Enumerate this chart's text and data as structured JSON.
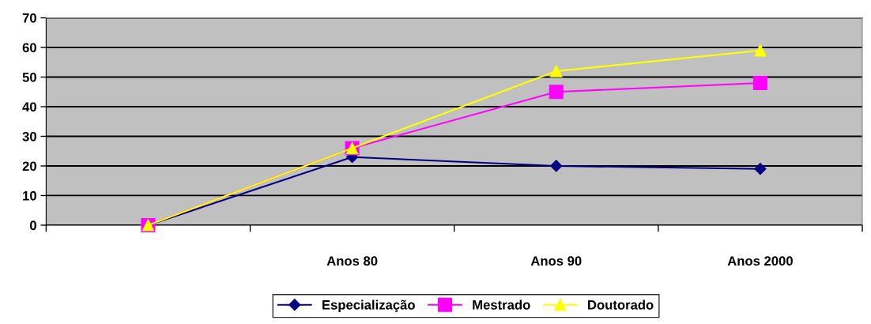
{
  "chart_data": {
    "type": "line",
    "categories": [
      null,
      "Anos 80",
      "Anos 90",
      "Anos 2000"
    ],
    "series": [
      {
        "name": "Especialização",
        "color": "#000080",
        "marker": "diamond",
        "values": [
          0,
          23,
          20,
          19
        ]
      },
      {
        "name": "Mestrado",
        "color": "#ff00ff",
        "marker": "square",
        "values": [
          0,
          26,
          45,
          48
        ]
      },
      {
        "name": "Doutorado",
        "color": "#ffff00",
        "marker": "triangle",
        "values": [
          0,
          26,
          52,
          59
        ]
      }
    ],
    "ylim": [
      0,
      70
    ],
    "yticks": [
      0,
      10,
      20,
      30,
      40,
      50,
      60,
      70
    ],
    "grid": "y",
    "legend": "bottom"
  }
}
